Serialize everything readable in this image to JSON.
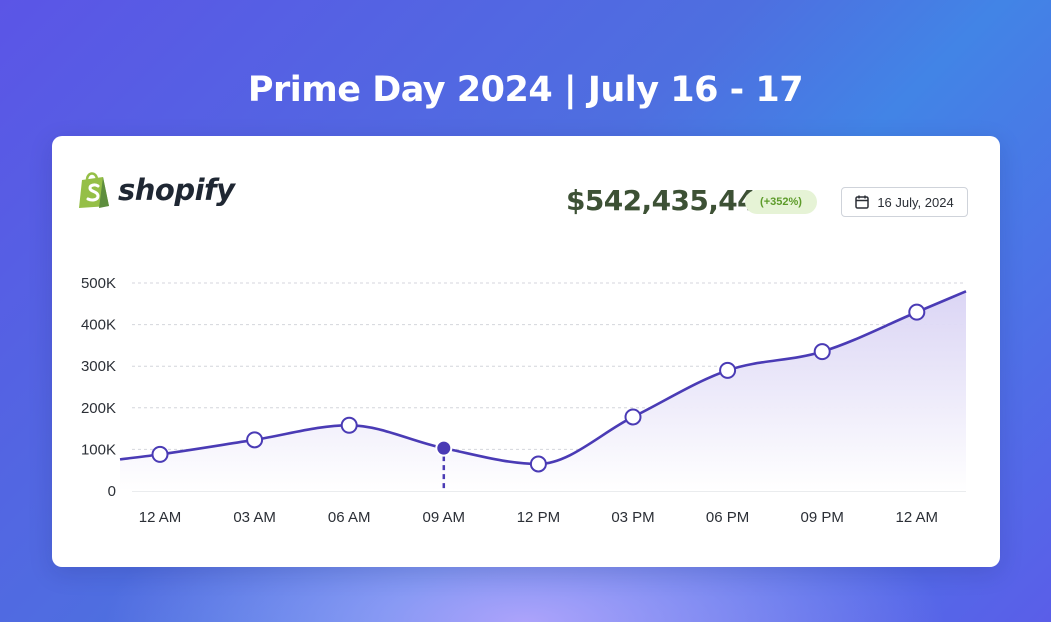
{
  "headline": "Prime Day 2024  |  July 16 - 17",
  "logo": {
    "text": "shopify",
    "icon": "shopify-bag-icon"
  },
  "summary": {
    "total": "$542,435,44",
    "change": "(+352%)",
    "date": "16 July, 2024",
    "date_icon": "calendar-icon"
  },
  "colors": {
    "line": "#4a3bb5",
    "fill_top": "#d9d3f4",
    "total_text": "#3d5135",
    "badge_bg": "#e6f3d6",
    "badge_text": "#5d9b2a",
    "logo_green": "#95bf47"
  },
  "chart_data": {
    "type": "area",
    "categories": [
      "12 AM",
      "03 AM",
      "06 AM",
      "09 AM",
      "12 PM",
      "03 PM",
      "06 PM",
      "09 PM",
      "12 AM"
    ],
    "values": [
      88000,
      123000,
      158000,
      103000,
      65000,
      178000,
      290000,
      335000,
      430000
    ],
    "start_value": 76000,
    "end_value": 480000,
    "highlighted_index": 3,
    "y_ticks": [
      0,
      100000,
      200000,
      300000,
      400000,
      500000
    ],
    "y_tick_labels": [
      "0",
      "100K",
      "200K",
      "300K",
      "400K",
      "500K"
    ],
    "ylim": [
      0,
      500000
    ],
    "grid": true,
    "legend": "none"
  }
}
